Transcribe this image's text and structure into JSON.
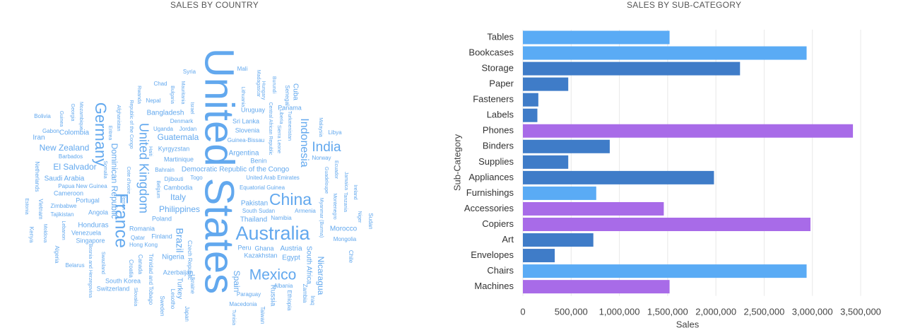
{
  "left_panel": {
    "title": "SALES BY COUNTRY"
  },
  "right_panel": {
    "title": "SALES BY SUB-CATEGORY"
  },
  "colors": {
    "light_blue": "#5aabf5",
    "mid_blue": "#3f7cc8",
    "purple": "#a86be8",
    "cloud_text": "#62a8ee",
    "grid": "#e8e8e8"
  },
  "chart_data": [
    {
      "type": "word_cloud",
      "title": "SALES BY COUNTRY",
      "words": [
        {
          "text": "United States",
          "weight": 100,
          "rot": 90
        },
        {
          "text": "Australia",
          "weight": 30,
          "rot": 0
        },
        {
          "text": "France",
          "weight": 28,
          "rot": 90
        },
        {
          "text": "China",
          "weight": 25,
          "rot": 0
        },
        {
          "text": "Germany",
          "weight": 23,
          "rot": 90
        },
        {
          "text": "Mexico",
          "weight": 22,
          "rot": 0
        },
        {
          "text": "India",
          "weight": 20,
          "rot": 0
        },
        {
          "text": "United Kingdom",
          "weight": 19,
          "rot": 90
        },
        {
          "text": "Indonesia",
          "weight": 17,
          "rot": 90
        },
        {
          "text": "Brazil",
          "weight": 15,
          "rot": 90
        },
        {
          "text": "Italy",
          "weight": 14,
          "rot": 0
        },
        {
          "text": "Spain",
          "weight": 13,
          "rot": 90
        },
        {
          "text": "Philippines",
          "weight": 12,
          "rot": 0
        },
        {
          "text": "Dominican Republic",
          "weight": 12,
          "rot": 90
        },
        {
          "text": "New Zealand",
          "weight": 12,
          "rot": 0
        },
        {
          "text": "El Salvador",
          "weight": 12,
          "rot": 0
        },
        {
          "text": "Guatemala",
          "weight": 11,
          "rot": 0
        },
        {
          "text": "Nicaragua",
          "weight": 11,
          "rot": 90
        },
        {
          "text": "Honduras",
          "weight": 10,
          "rot": 0
        },
        {
          "text": "Colombia",
          "weight": 10,
          "rot": 0
        },
        {
          "text": "Democratic Republic of the Congo",
          "weight": 10,
          "rot": 0
        },
        {
          "text": "Argentina",
          "weight": 10,
          "rot": 0
        },
        {
          "text": "Bangladesh",
          "weight": 10,
          "rot": 0
        },
        {
          "text": "Morocco",
          "weight": 10,
          "rot": 0
        },
        {
          "text": "Cuba",
          "weight": 10,
          "rot": 90
        },
        {
          "text": "Pakistan",
          "weight": 10,
          "rot": 0
        },
        {
          "text": "Thailand",
          "weight": 10,
          "rot": 0
        },
        {
          "text": "Austria",
          "weight": 10,
          "rot": 0
        },
        {
          "text": "Egypt",
          "weight": 10,
          "rot": 0
        },
        {
          "text": "Nigeria",
          "weight": 10,
          "rot": 0
        },
        {
          "text": "Saudi Arabia",
          "weight": 10,
          "rot": 0
        },
        {
          "text": "Turkey",
          "weight": 10,
          "rot": 90
        },
        {
          "text": "Russia",
          "weight": 10,
          "rot": 90
        },
        {
          "text": "South Africa",
          "weight": 10,
          "rot": 90
        },
        {
          "text": "Iran",
          "weight": 10,
          "rot": 0
        },
        {
          "text": "Peru",
          "weight": 9,
          "rot": 0
        },
        {
          "text": "Ghana",
          "weight": 9,
          "rot": 0
        },
        {
          "text": "Poland",
          "weight": 9,
          "rot": 0
        },
        {
          "text": "Romania",
          "weight": 9,
          "rot": 0
        },
        {
          "text": "Finland",
          "weight": 9,
          "rot": 0
        },
        {
          "text": "South Korea",
          "weight": 9,
          "rot": 0
        },
        {
          "text": "Switzerland",
          "weight": 9,
          "rot": 0
        },
        {
          "text": "Kazakhstan",
          "weight": 9,
          "rot": 0
        },
        {
          "text": "Azerbaijan",
          "weight": 9,
          "rot": 0
        },
        {
          "text": "Venezuela",
          "weight": 9,
          "rot": 0
        },
        {
          "text": "Singapore",
          "weight": 9,
          "rot": 0
        },
        {
          "text": "Angola",
          "weight": 9,
          "rot": 0
        },
        {
          "text": "Portugal",
          "weight": 9,
          "rot": 0
        },
        {
          "text": "Cameroon",
          "weight": 9,
          "rot": 0
        },
        {
          "text": "Cambodia",
          "weight": 9,
          "rot": 0
        },
        {
          "text": "Kyrgyzstan",
          "weight": 9,
          "rot": 0
        },
        {
          "text": "Martinique",
          "weight": 9,
          "rot": 0
        },
        {
          "text": "Benin",
          "weight": 9,
          "rot": 0
        },
        {
          "text": "Slovenia",
          "weight": 9,
          "rot": 0
        },
        {
          "text": "Sri Lanka",
          "weight": 9,
          "rot": 0
        },
        {
          "text": "Uruguay",
          "weight": 9,
          "rot": 0
        },
        {
          "text": "Panama",
          "weight": 9,
          "rot": 0
        },
        {
          "text": "Albania",
          "weight": 8,
          "rot": 0
        },
        {
          "text": "Mongolia",
          "weight": 8,
          "rot": 0
        },
        {
          "text": "Libya",
          "weight": 8,
          "rot": 0
        },
        {
          "text": "Norway",
          "weight": 8,
          "rot": 0
        },
        {
          "text": "Qatar",
          "weight": 8,
          "rot": 0
        },
        {
          "text": "Hong Kong",
          "weight": 8,
          "rot": 0
        },
        {
          "text": "Belarus",
          "weight": 8,
          "rot": 0
        },
        {
          "text": "Zimbabwe",
          "weight": 8,
          "rot": 0
        },
        {
          "text": "Tajikistan",
          "weight": 8,
          "rot": 0
        },
        {
          "text": "Papua New Guinea",
          "weight": 8,
          "rot": 0
        },
        {
          "text": "Barbados",
          "weight": 8,
          "rot": 0
        },
        {
          "text": "Bolivia",
          "weight": 8,
          "rot": 0
        },
        {
          "text": "Gabon",
          "weight": 8,
          "rot": 0
        },
        {
          "text": "Chad",
          "weight": 8,
          "rot": 0
        },
        {
          "text": "Nepal",
          "weight": 8,
          "rot": 0
        },
        {
          "text": "Denmark",
          "weight": 8,
          "rot": 0
        },
        {
          "text": "Uganda",
          "weight": 8,
          "rot": 0
        },
        {
          "text": "Jordan",
          "weight": 8,
          "rot": 0
        },
        {
          "text": "Bahrain",
          "weight": 8,
          "rot": 0
        },
        {
          "text": "Djibouti",
          "weight": 8,
          "rot": 0
        },
        {
          "text": "Togo",
          "weight": 8,
          "rot": 0
        },
        {
          "text": "United Arab Emirates",
          "weight": 8,
          "rot": 0
        },
        {
          "text": "Equatorial Guinea",
          "weight": 8,
          "rot": 0
        },
        {
          "text": "South Sudan",
          "weight": 8,
          "rot": 0
        },
        {
          "text": "Namibia",
          "weight": 8,
          "rot": 0
        },
        {
          "text": "Armenia",
          "weight": 8,
          "rot": 0
        },
        {
          "text": "Guinea-Bissau",
          "weight": 8,
          "rot": 0
        },
        {
          "text": "Syria",
          "weight": 8,
          "rot": 0
        },
        {
          "text": "Mali",
          "weight": 8,
          "rot": 0
        },
        {
          "text": "Paraguay",
          "weight": 8,
          "rot": 0
        },
        {
          "text": "Macedonia",
          "weight": 8,
          "rot": 0
        },
        {
          "text": "Iraq",
          "weight": 8,
          "rot": 90
        },
        {
          "text": "Zambia",
          "weight": 8,
          "rot": 90
        },
        {
          "text": "Ethiopia",
          "weight": 8,
          "rot": 90
        },
        {
          "text": "Taiwan",
          "weight": 8,
          "rot": 90
        },
        {
          "text": "Tunisia",
          "weight": 7,
          "rot": 90
        },
        {
          "text": "Japan",
          "weight": 8,
          "rot": 90
        },
        {
          "text": "Ukraine",
          "weight": 8,
          "rot": 90
        },
        {
          "text": "Czech Republic",
          "weight": 8,
          "rot": 90
        },
        {
          "text": "Lesotho",
          "weight": 8,
          "rot": 90
        },
        {
          "text": "Sweden",
          "weight": 8,
          "rot": 90
        },
        {
          "text": "Trinidad and Tobago",
          "weight": 8,
          "rot": 90
        },
        {
          "text": "Croatia",
          "weight": 8,
          "rot": 90
        },
        {
          "text": "Canada",
          "weight": 8,
          "rot": 90
        },
        {
          "text": "Senegal",
          "weight": 8,
          "rot": 90
        },
        {
          "text": "Bosnia and Herzegovina",
          "weight": 7,
          "rot": 90
        },
        {
          "text": "Swaziland",
          "weight": 7,
          "rot": 90
        },
        {
          "text": "Algeria",
          "weight": 8,
          "rot": 90
        },
        {
          "text": "Kenya",
          "weight": 8,
          "rot": 90
        },
        {
          "text": "Moldova",
          "weight": 7,
          "rot": 90
        },
        {
          "text": "Lebanon",
          "weight": 7,
          "rot": 90
        },
        {
          "text": "Vietnam",
          "weight": 8,
          "rot": 90
        },
        {
          "text": "Estonia",
          "weight": 7,
          "rot": 90
        },
        {
          "text": "Lithuania",
          "weight": 7,
          "rot": 90
        },
        {
          "text": "Netherlands",
          "weight": 8,
          "rot": 90
        },
        {
          "text": "Somalia",
          "weight": 7,
          "rot": 90
        },
        {
          "text": "Sudan",
          "weight": 8,
          "rot": 90
        },
        {
          "text": "Niger",
          "weight": 7,
          "rot": 90
        },
        {
          "text": "Chile",
          "weight": 8,
          "rot": 90
        },
        {
          "text": "Ireland",
          "weight": 7,
          "rot": 90
        },
        {
          "text": "Tanzania",
          "weight": 7,
          "rot": 90
        },
        {
          "text": "Montenegro",
          "weight": 7,
          "rot": 90
        },
        {
          "text": "Jamaica",
          "weight": 7,
          "rot": 90
        },
        {
          "text": "Myanmar (Burma)",
          "weight": 7,
          "rot": 90
        },
        {
          "text": "Guadeloupe",
          "weight": 7,
          "rot": 90
        },
        {
          "text": "Ecuador",
          "weight": 7,
          "rot": 90
        },
        {
          "text": "Malaysia",
          "weight": 7,
          "rot": 90
        },
        {
          "text": "Liberia",
          "weight": 7,
          "rot": 90
        },
        {
          "text": "Turkmenistan",
          "weight": 7,
          "rot": 90
        },
        {
          "text": "Sierra Leone",
          "weight": 7,
          "rot": 90
        },
        {
          "text": "Central African Republic",
          "weight": 7,
          "rot": 90
        },
        {
          "text": "Burundi",
          "weight": 7,
          "rot": 90
        },
        {
          "text": "Hungary",
          "weight": 7,
          "rot": 90
        },
        {
          "text": "Madagascar",
          "weight": 7,
          "rot": 90
        },
        {
          "text": "Israel",
          "weight": 7,
          "rot": 90
        },
        {
          "text": "Mauritania",
          "weight": 7,
          "rot": 90
        },
        {
          "text": "Bulgaria",
          "weight": 7,
          "rot": 90
        },
        {
          "text": "Rwanda",
          "weight": 7,
          "rot": 90
        },
        {
          "text": "Republic of the Congo",
          "weight": 7,
          "rot": 90
        },
        {
          "text": "Haiti",
          "weight": 7,
          "rot": 90
        },
        {
          "text": "Cote d'Ivoire",
          "weight": 7,
          "rot": 90
        },
        {
          "text": "Belgium",
          "weight": 7,
          "rot": 90
        },
        {
          "text": "Afghanistan",
          "weight": 7,
          "rot": 90
        },
        {
          "text": "Eritrea",
          "weight": 7,
          "rot": 90
        },
        {
          "text": "Yemen",
          "weight": 7,
          "rot": 90
        },
        {
          "text": "Mozambique",
          "weight": 7,
          "rot": 90
        },
        {
          "text": "Guinea",
          "weight": 7,
          "rot": 90
        },
        {
          "text": "Georgia",
          "weight": 7,
          "rot": 90
        },
        {
          "text": "Slovakia",
          "weight": 7,
          "rot": 90
        }
      ]
    },
    {
      "type": "bar",
      "orientation": "horizontal",
      "title": "SALES BY SUB-CATEGORY",
      "xlabel": "Sales",
      "ylabel": "Sub-Category",
      "xlim": [
        0,
        3500000
      ],
      "xticks": [
        0,
        500000,
        1000000,
        1500000,
        2000000,
        2500000,
        3000000,
        3500000
      ],
      "xtick_labels": [
        "0",
        "500,000",
        "1,000,000",
        "1,500,000",
        "2,000,000",
        "2,500,000",
        "3,000,000",
        "3,500,000"
      ],
      "grid": true,
      "categories": [
        "Tables",
        "Bookcases",
        "Storage",
        "Paper",
        "Fasteners",
        "Labels",
        "Phones",
        "Binders",
        "Supplies",
        "Appliances",
        "Furnishings",
        "Accessories",
        "Copiers",
        "Art",
        "Envelopes",
        "Chairs",
        "Machines"
      ],
      "values": [
        1520000,
        2940000,
        2250000,
        470000,
        160000,
        150000,
        3420000,
        900000,
        470000,
        1980000,
        760000,
        1460000,
        2980000,
        730000,
        330000,
        2940000,
        1520000
      ],
      "bar_colors": [
        "#5aabf5",
        "#5aabf5",
        "#3f7cc8",
        "#3f7cc8",
        "#3f7cc8",
        "#3f7cc8",
        "#a86be8",
        "#3f7cc8",
        "#3f7cc8",
        "#3f7cc8",
        "#5aabf5",
        "#a86be8",
        "#a86be8",
        "#3f7cc8",
        "#3f7cc8",
        "#5aabf5",
        "#a86be8"
      ]
    }
  ]
}
